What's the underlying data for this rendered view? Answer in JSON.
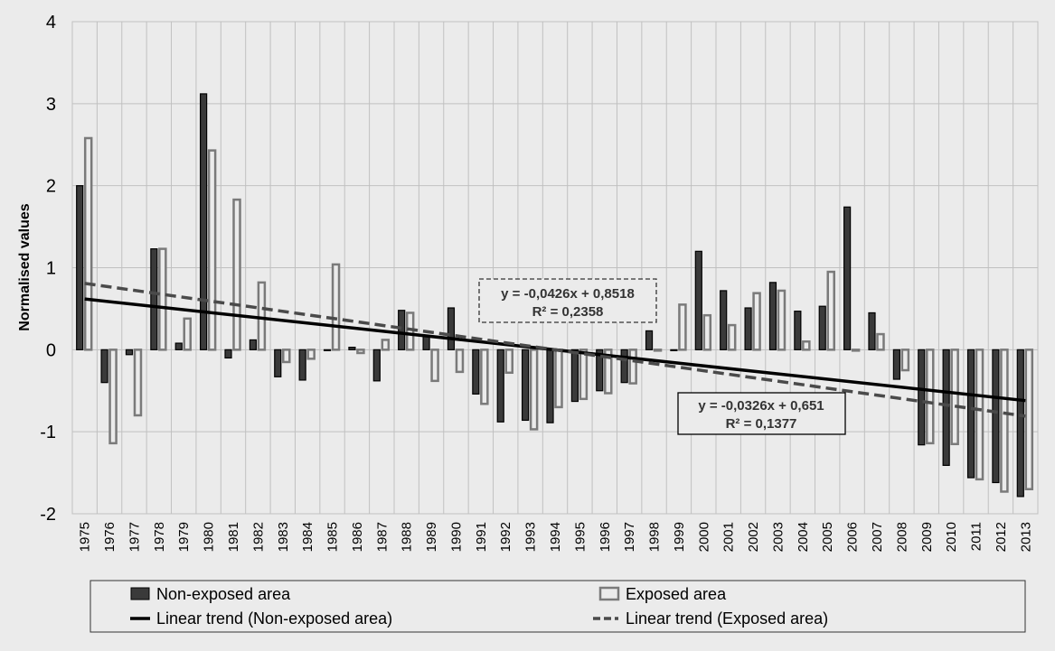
{
  "chart_data": {
    "type": "bar",
    "ylabel": "Normalised values",
    "ylim": [
      -2,
      4
    ],
    "yticks": [
      -2,
      -1,
      0,
      1,
      2,
      3,
      4
    ],
    "grid": true,
    "legend_position": "bottom",
    "categories": [
      "1975",
      "1976",
      "1977",
      "1978",
      "1979",
      "1980",
      "1981",
      "1982",
      "1983",
      "1984",
      "1985",
      "1986",
      "1987",
      "1988",
      "1989",
      "1990",
      "1991",
      "1992",
      "1993",
      "1994",
      "1995",
      "1996",
      "1997",
      "1998",
      "1999",
      "2000",
      "2001",
      "2002",
      "2003",
      "2004",
      "2005",
      "2006",
      "2007",
      "2008",
      "2009",
      "2010",
      "2011",
      "2012",
      "2013"
    ],
    "series": [
      {
        "name": "Non-exposed area",
        "color": "#3a3a3a",
        "values": [
          2.0,
          -0.4,
          -0.06,
          1.23,
          0.08,
          3.12,
          -0.1,
          0.12,
          -0.33,
          -0.37,
          0.0,
          0.03,
          -0.38,
          0.48,
          0.17,
          0.51,
          -0.54,
          -0.88,
          -0.86,
          -0.89,
          -0.63,
          -0.5,
          -0.4,
          0.23,
          0.0,
          1.2,
          0.72,
          0.51,
          0.82,
          0.47,
          0.53,
          1.74,
          0.45,
          -0.36,
          -1.16,
          -1.41,
          -1.56,
          -1.62,
          -1.79
        ]
      },
      {
        "name": "Exposed area",
        "color": "#7a7a7a",
        "values": [
          2.58,
          -1.14,
          -0.8,
          1.23,
          0.38,
          2.43,
          1.83,
          0.82,
          -0.15,
          -0.11,
          1.04,
          -0.04,
          0.12,
          0.45,
          -0.38,
          -0.27,
          -0.66,
          -0.28,
          -0.97,
          -0.7,
          -0.6,
          -0.53,
          -0.41,
          0.0,
          0.55,
          0.42,
          0.3,
          0.69,
          0.72,
          0.1,
          0.95,
          0.0,
          0.19,
          -0.25,
          -1.14,
          -1.15,
          -1.58,
          -1.73,
          -1.7
        ]
      }
    ],
    "trendlines": [
      {
        "name": "Linear trend (Non-exposed area)",
        "slope": -0.0326,
        "intercept": 0.651,
        "equation": "y = -0,0326x + 0,651",
        "r2": "R² = 0,1377",
        "style": "solid"
      },
      {
        "name": "Linear trend (Exposed area)",
        "slope": -0.0426,
        "intercept": 0.8518,
        "equation": "y = -0,0426x + 0,8518",
        "r2": "R² = 0,2358",
        "style": "dashed"
      }
    ]
  },
  "colors": {
    "background": "#ebebeb",
    "grid": "#c0c0c0",
    "nonexposed_fill": "#3a3a3a",
    "exposed_stroke": "#7a7a7a",
    "trend_solid": "#000000",
    "trend_dashed": "#4a4a4a"
  }
}
